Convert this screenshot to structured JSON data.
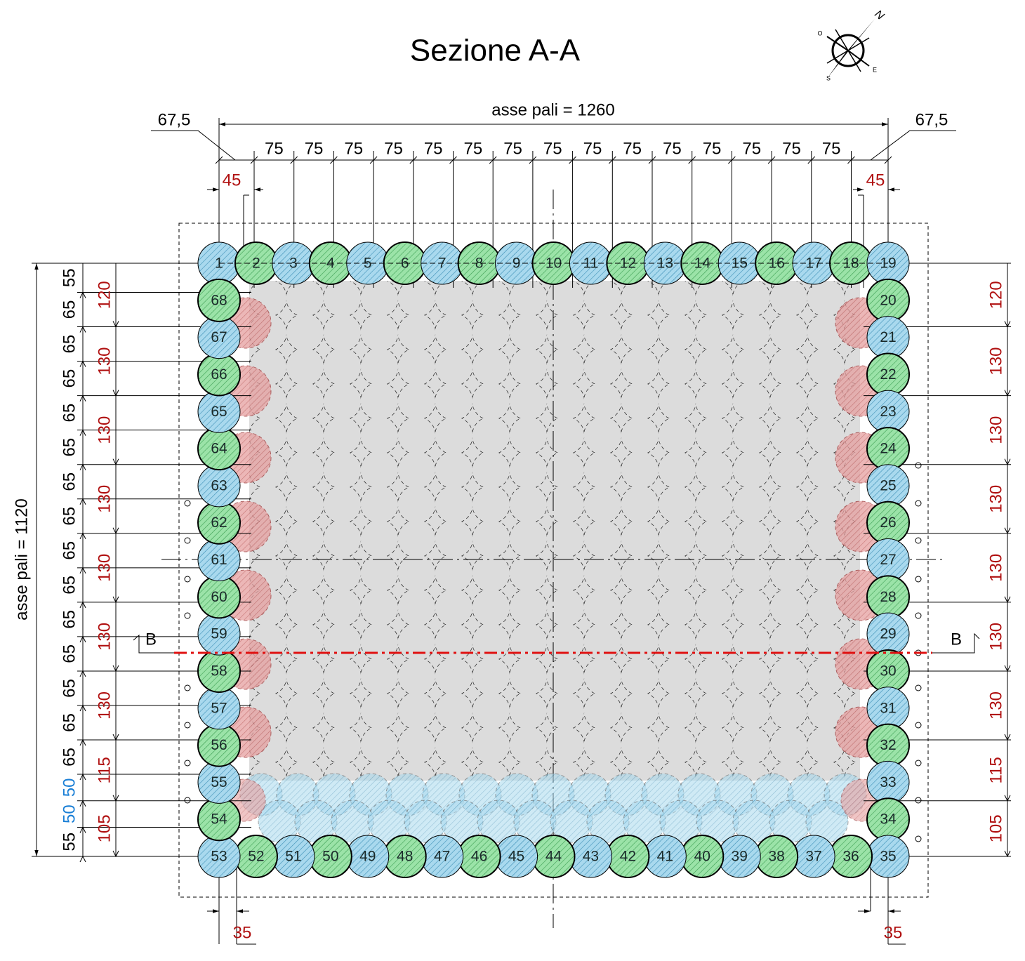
{
  "title": "Sezione A-A",
  "compass": {
    "n": "N",
    "e": "E",
    "s": "S",
    "o": "O"
  },
  "top_dimension": {
    "label": "asse pali = 1260",
    "end_left": "67,5",
    "end_right": "67,5",
    "edge_left": "45",
    "edge_right": "45",
    "spacing": [
      "75",
      "75",
      "75",
      "75",
      "75",
      "75",
      "75",
      "75",
      "75",
      "75",
      "75",
      "75",
      "75",
      "75",
      "75"
    ]
  },
  "bottom_dimension": {
    "left": "35",
    "right": "35"
  },
  "left_dimension": {
    "label": "asse pali = 1120",
    "chain": [
      "55",
      "65",
      "65",
      "65",
      "65",
      "65",
      "65",
      "65",
      "65",
      "65",
      "65",
      "65",
      "65",
      "65",
      "65",
      "50",
      "50",
      "55"
    ],
    "red": [
      "120",
      "130",
      "130",
      "130",
      "130",
      "130",
      "130",
      "115",
      "105"
    ]
  },
  "right_dimension": {
    "red": [
      "120",
      "130",
      "130",
      "130",
      "130",
      "130",
      "130",
      "115",
      "105"
    ]
  },
  "section": {
    "left": "B",
    "right": "B"
  },
  "piles": {
    "top": [
      "1",
      "2",
      "3",
      "4",
      "5",
      "6",
      "7",
      "8",
      "9",
      "10",
      "11",
      "12",
      "13",
      "14",
      "15",
      "16",
      "17",
      "18",
      "19"
    ],
    "right": [
      "20",
      "21",
      "22",
      "23",
      "24",
      "25",
      "26",
      "27",
      "28",
      "29",
      "30",
      "31",
      "32",
      "33",
      "34"
    ],
    "bottom": [
      "35",
      "36",
      "37",
      "38",
      "39",
      "40",
      "41",
      "42",
      "43",
      "44",
      "45",
      "46",
      "47",
      "48",
      "49",
      "50",
      "51",
      "52",
      "53"
    ],
    "left": [
      "54",
      "55",
      "56",
      "57",
      "58",
      "59",
      "60",
      "61",
      "62",
      "63",
      "64",
      "65",
      "66",
      "67",
      "68"
    ]
  }
}
